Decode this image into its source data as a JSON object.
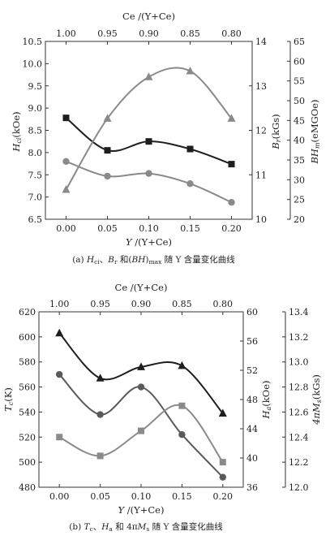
{
  "chart_data": [
    {
      "type": "line",
      "caption": "(a) Hci、Br 和(BH)max 随 Y 含量变化曲线",
      "x": [
        0.0,
        0.05,
        0.1,
        0.15,
        0.2
      ],
      "x_ticks": [
        "0.00",
        "0.05",
        "0.10",
        "0.15",
        "0.20"
      ],
      "xlim": [
        -0.025,
        0.225
      ],
      "xlabel": "Y /(Y+Ce)",
      "top_ticks": [
        "1.00",
        "0.95",
        "0.90",
        "0.85",
        "0.80"
      ],
      "top_label": "Ce /(Y+Ce)",
      "axes": {
        "left": {
          "label": "Hci(kOe)",
          "lim": [
            6.5,
            10.5
          ],
          "ticks": [
            "6.5",
            "7.0",
            "7.5",
            "8.0",
            "8.5",
            "9.0",
            "9.5",
            "10.0",
            "10.5"
          ]
        },
        "right1": {
          "label": "Br(kGs)",
          "lim": [
            10,
            14
          ],
          "ticks": [
            "10",
            "11",
            "12",
            "13",
            "14"
          ]
        },
        "right2": {
          "label": "BHm(eMGOe)",
          "lim": [
            20,
            65
          ],
          "ticks": [
            "20",
            "25",
            "30",
            "35",
            "40",
            "45",
            "50",
            "55",
            "60",
            "65"
          ]
        }
      },
      "series": [
        {
          "axis": "left",
          "marker": "square",
          "color": "#1e1e1e",
          "values": [
            8.78,
            8.05,
            8.25,
            8.08,
            7.74
          ]
        },
        {
          "axis": "right1",
          "marker": "circle",
          "color": "#8a8a8a",
          "values": [
            11.3,
            10.97,
            11.03,
            10.8,
            10.38
          ]
        },
        {
          "axis": "right2",
          "marker": "triangle",
          "color": "#8a8a8a",
          "values": [
            27.5,
            45.5,
            56,
            57.5,
            45.5
          ]
        }
      ]
    },
    {
      "type": "line",
      "caption": "(b) Tc、Ha 和 4πMs 随 Y 含量变化曲线",
      "x": [
        0.0,
        0.05,
        0.1,
        0.15,
        0.2
      ],
      "x_ticks": [
        "0.00",
        "0.05",
        "0.10",
        "0.15",
        "0.20"
      ],
      "xlim": [
        -0.025,
        0.225
      ],
      "xlabel": "Y /(Y+Ce)",
      "top_ticks": [
        "1.00",
        "0.95",
        "0.90",
        "0.85",
        "0.80"
      ],
      "top_label": "Ce /(Y+Ce)",
      "axes": {
        "left": {
          "label": "Tc(K)",
          "lim": [
            480,
            620
          ],
          "ticks": [
            "480",
            "500",
            "520",
            "540",
            "560",
            "580",
            "600",
            "620"
          ]
        },
        "right1": {
          "label": "Ha(kOe)",
          "lim": [
            36,
            60
          ],
          "ticks": [
            "36",
            "40",
            "44",
            "48",
            "52",
            "56",
            "60"
          ]
        },
        "right2": {
          "label": "4πMs(kGs)",
          "lim": [
            12.0,
            13.4
          ],
          "ticks": [
            "12.0",
            "12.2",
            "12.4",
            "12.6",
            "12.8",
            "13.0",
            "13.2",
            "13.4"
          ]
        }
      },
      "series": [
        {
          "axis": "left",
          "marker": "triangle",
          "color": "#1e1e1e",
          "values": [
            603,
            567,
            576,
            577,
            539
          ]
        },
        {
          "axis": "left",
          "marker": "circle",
          "color": "#5a5a5a",
          "values": [
            570,
            538,
            560,
            522,
            488
          ]
        },
        {
          "axis": "left",
          "marker": "square",
          "color": "#8a8a8a",
          "values": [
            520,
            505,
            525,
            545,
            500
          ]
        }
      ]
    }
  ]
}
